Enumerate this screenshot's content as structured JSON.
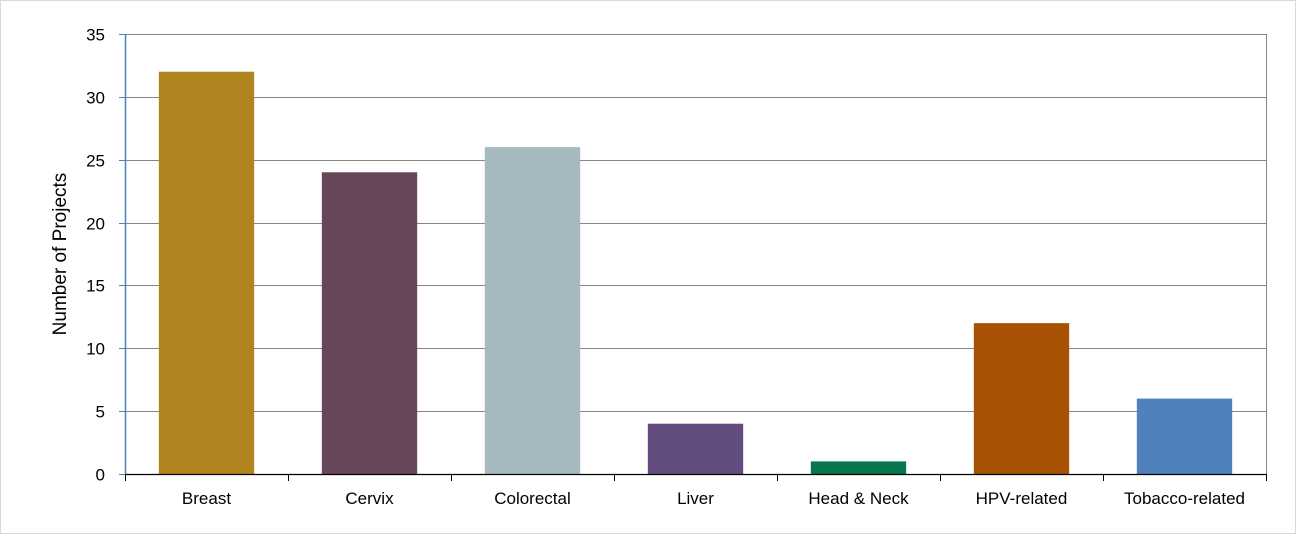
{
  "chart_data": {
    "type": "bar",
    "title": "",
    "xlabel": "",
    "ylabel": "Number of Projects",
    "ylim": [
      0,
      35
    ],
    "yticks": [
      0,
      5,
      10,
      15,
      20,
      25,
      30,
      35
    ],
    "grid": true,
    "legend": "none",
    "categories": [
      "Breast",
      "Cervix",
      "Colorectal",
      "Liver",
      "Head & Neck",
      "HPV-related",
      "Tobacco-related"
    ],
    "values": [
      32,
      24,
      26,
      4,
      1,
      12,
      6
    ],
    "colors": [
      "#b0841e",
      "#67465a",
      "#a6b9be",
      "#624c7f",
      "#07764d",
      "#a65202",
      "#4f81bd"
    ]
  }
}
